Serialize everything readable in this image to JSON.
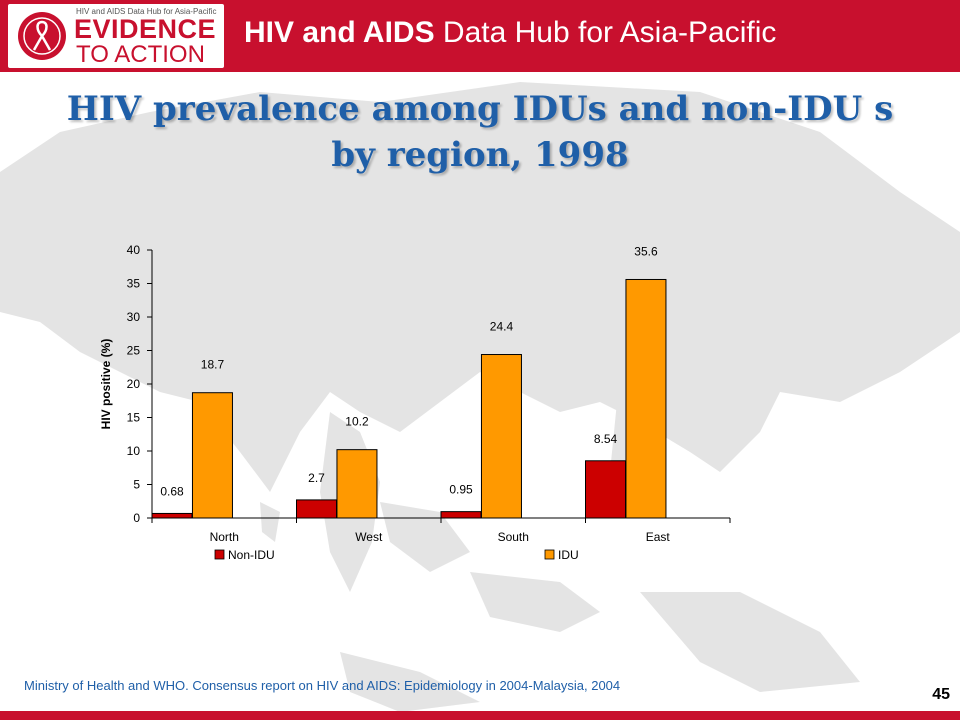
{
  "header": {
    "logo_small_text": "HIV and AIDS Data Hub for Asia-Pacific",
    "logo_line1": "EVIDENCE",
    "logo_line2": "TO ACTION",
    "hub_title_bold": "HIV and AIDS",
    "hub_title_rest": " Data Hub for Asia-Pacific"
  },
  "slide": {
    "title_line1": "HIV prevalence among IDUs and non-IDU s",
    "title_line2": "by region, 1998",
    "footer": "Ministry of Health and WHO. Consensus report on HIV and AIDS: Epidemiology in 2004-Malaysia, 2004",
    "page_number": "45"
  },
  "chart_data": {
    "type": "bar",
    "categories": [
      "North",
      "West",
      "South",
      "East"
    ],
    "series": [
      {
        "name": "Non-IDU",
        "values": [
          0.68,
          2.7,
          0.95,
          8.54
        ],
        "color": "#cc0000"
      },
      {
        "name": "IDU",
        "values": [
          18.7,
          10.2,
          24.4,
          35.6
        ],
        "color": "#ff9900"
      }
    ],
    "data_labels": [
      [
        "0.68",
        "2.7",
        "0.95",
        "8.54"
      ],
      [
        "18.7",
        "10.2",
        "24.4",
        "35.6"
      ]
    ],
    "ylabel": "HIV positive (%)",
    "ylim": [
      0,
      40
    ],
    "yticks": [
      0,
      5,
      10,
      15,
      20,
      25,
      30,
      35,
      40
    ],
    "legend_position": "bottom",
    "grid": false
  }
}
